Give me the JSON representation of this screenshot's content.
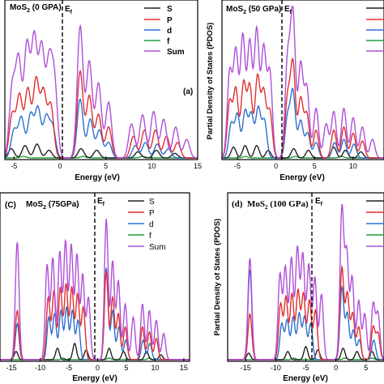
{
  "chart_data": [
    {
      "type": "line",
      "panel_label": "(a)",
      "title": "MoS2 (0 GPA)",
      "fermi_label": "Ef",
      "xlabel": "Energy (eV)",
      "ylabel": "",
      "xlim": [
        -6,
        15
      ],
      "xticks": [
        "-5",
        "0",
        "5",
        "10",
        "15"
      ],
      "legend": [
        "S",
        "P",
        "d",
        "f",
        "Sum"
      ],
      "colors": {
        "S": "#222222",
        "P": "#e03030",
        "d": "#2f6fd0",
        "f": "#1f9e3a",
        "Sum": "#b04fd8"
      },
      "peaks": {
        "Sum": [
          [
            -5.2,
            0.45
          ],
          [
            -4.5,
            0.62
          ],
          [
            -3.6,
            0.72
          ],
          [
            -2.8,
            0.76
          ],
          [
            -2.0,
            0.7
          ],
          [
            -1.2,
            0.58
          ],
          [
            -0.6,
            0.48
          ],
          [
            2.2,
            0.85
          ],
          [
            3.2,
            0.62
          ],
          [
            4.2,
            0.48
          ],
          [
            5.3,
            0.36
          ],
          [
            7.8,
            0.22
          ],
          [
            9.0,
            0.28
          ],
          [
            10.2,
            0.3
          ],
          [
            11.3,
            0.25
          ],
          [
            12.6,
            0.2
          ],
          [
            13.8,
            0.12
          ]
        ],
        "P": [
          [
            -5.2,
            0.28
          ],
          [
            -4.4,
            0.4
          ],
          [
            -3.5,
            0.44
          ],
          [
            -2.6,
            0.5
          ],
          [
            -1.8,
            0.42
          ],
          [
            -1.0,
            0.34
          ],
          [
            2.2,
            0.56
          ],
          [
            3.2,
            0.4
          ],
          [
            4.2,
            0.28
          ],
          [
            5.3,
            0.2
          ],
          [
            8.0,
            0.14
          ],
          [
            9.2,
            0.18
          ],
          [
            10.4,
            0.18
          ],
          [
            11.6,
            0.14
          ],
          [
            12.8,
            0.1
          ]
        ],
        "d": [
          [
            -5.0,
            0.18
          ],
          [
            -4.2,
            0.26
          ],
          [
            -3.2,
            0.28
          ],
          [
            -2.4,
            0.32
          ],
          [
            -1.5,
            0.26
          ],
          [
            -0.8,
            0.2
          ],
          [
            2.2,
            0.38
          ],
          [
            3.3,
            0.25
          ],
          [
            4.3,
            0.18
          ],
          [
            5.3,
            0.1
          ],
          [
            8.2,
            0.08
          ],
          [
            9.3,
            0.1
          ],
          [
            10.6,
            0.09
          ],
          [
            11.8,
            0.06
          ]
        ],
        "S": [
          [
            -5.3,
            0.06
          ],
          [
            -3.8,
            0.08
          ],
          [
            -2.5,
            0.09
          ],
          [
            -1.2,
            0.05
          ],
          [
            2.3,
            0.06
          ],
          [
            4.0,
            0.05
          ],
          [
            8.5,
            0.04
          ],
          [
            10.5,
            0.05
          ],
          [
            12.5,
            0.03
          ]
        ],
        "f": [
          [
            -4.0,
            0.01
          ],
          [
            2.5,
            0.01
          ],
          [
            9.0,
            0.01
          ]
        ]
      }
    },
    {
      "type": "line",
      "panel_label": "",
      "title": "MoS2 (50 GPa)",
      "fermi_label": "Ef",
      "xlabel": "Energy (eV)",
      "ylabel": "Partial Density of States (PDOS)",
      "xlim": [
        -7,
        14
      ],
      "xticks": [
        "-5",
        "0",
        "5",
        "10"
      ],
      "legend": [
        "",
        "",
        "",
        "",
        ""
      ],
      "colors": {
        "S": "#222222",
        "P": "#e03030",
        "d": "#2f6fd0",
        "f": "#1f9e3a",
        "Sum": "#b04fd8"
      },
      "peaks": {
        "Sum": [
          [
            -6.0,
            0.55
          ],
          [
            -5.2,
            0.68
          ],
          [
            -4.3,
            0.78
          ],
          [
            -3.4,
            0.74
          ],
          [
            -2.5,
            0.82
          ],
          [
            -1.6,
            0.7
          ],
          [
            -0.8,
            0.55
          ],
          [
            1.5,
            0.62
          ],
          [
            2.2,
            0.92
          ],
          [
            3.2,
            0.6
          ],
          [
            4.0,
            0.45
          ],
          [
            5.2,
            0.32
          ],
          [
            6.5,
            0.22
          ],
          [
            7.5,
            0.3
          ],
          [
            8.8,
            0.32
          ],
          [
            10.0,
            0.26
          ],
          [
            11.2,
            0.2
          ],
          [
            12.5,
            0.12
          ]
        ],
        "P": [
          [
            -6.0,
            0.36
          ],
          [
            -5.2,
            0.44
          ],
          [
            -4.2,
            0.48
          ],
          [
            -3.4,
            0.46
          ],
          [
            -2.4,
            0.52
          ],
          [
            -1.6,
            0.42
          ],
          [
            -0.8,
            0.3
          ],
          [
            1.5,
            0.38
          ],
          [
            2.2,
            0.6
          ],
          [
            3.2,
            0.38
          ],
          [
            4.0,
            0.28
          ],
          [
            5.2,
            0.18
          ],
          [
            7.5,
            0.18
          ],
          [
            8.8,
            0.2
          ],
          [
            10.0,
            0.16
          ],
          [
            11.2,
            0.11
          ]
        ],
        "d": [
          [
            -5.8,
            0.22
          ],
          [
            -5.0,
            0.28
          ],
          [
            -4.0,
            0.3
          ],
          [
            -3.2,
            0.28
          ],
          [
            -2.3,
            0.32
          ],
          [
            -1.5,
            0.24
          ],
          [
            1.5,
            0.26
          ],
          [
            2.2,
            0.42
          ],
          [
            3.2,
            0.24
          ],
          [
            4.1,
            0.16
          ],
          [
            5.2,
            0.1
          ],
          [
            7.6,
            0.1
          ],
          [
            8.8,
            0.12
          ],
          [
            10.1,
            0.09
          ]
        ],
        "S": [
          [
            -5.5,
            0.07
          ],
          [
            -4.0,
            0.08
          ],
          [
            -2.5,
            0.08
          ],
          [
            -1.0,
            0.05
          ],
          [
            2.3,
            0.06
          ],
          [
            4.2,
            0.05
          ],
          [
            7.5,
            0.07
          ],
          [
            9.0,
            0.05
          ],
          [
            11.0,
            0.04
          ]
        ],
        "f": [
          [
            -4.0,
            0.01
          ],
          [
            2.5,
            0.01
          ],
          [
            8.5,
            0.01
          ]
        ]
      }
    },
    {
      "type": "line",
      "panel_label": "(C)",
      "title": "MoS2 (75GPa)",
      "fermi_label": "Ef",
      "xlabel": "Energy (eV)",
      "ylabel": "",
      "xlim": [
        -17,
        16
      ],
      "xticks": [
        "-15",
        "-10",
        "-5",
        "0",
        "5",
        "10",
        "15"
      ],
      "legend": [
        "S",
        "P",
        "d",
        "f",
        "Sum"
      ],
      "colors": {
        "S": "#222222",
        "P": "#e03030",
        "d": "#2f6fd0",
        "f": "#1f9e3a",
        "Sum": "#b04fd8"
      },
      "peaks": {
        "Sum": [
          [
            -14.0,
            0.72
          ],
          [
            -8.8,
            0.58
          ],
          [
            -7.8,
            0.62
          ],
          [
            -6.6,
            0.66
          ],
          [
            -5.6,
            0.72
          ],
          [
            -4.6,
            0.7
          ],
          [
            -3.6,
            0.64
          ],
          [
            -2.6,
            0.52
          ],
          [
            -1.6,
            0.38
          ],
          [
            1.5,
            0.86
          ],
          [
            2.6,
            0.6
          ],
          [
            3.6,
            0.48
          ],
          [
            4.8,
            0.34
          ],
          [
            6.2,
            0.26
          ],
          [
            7.8,
            0.34
          ],
          [
            9.0,
            0.3
          ],
          [
            10.2,
            0.24
          ],
          [
            11.5,
            0.16
          ]
        ],
        "P": [
          [
            -14.0,
            0.3
          ],
          [
            -8.6,
            0.38
          ],
          [
            -7.6,
            0.42
          ],
          [
            -6.5,
            0.44
          ],
          [
            -5.5,
            0.46
          ],
          [
            -4.5,
            0.44
          ],
          [
            -3.5,
            0.4
          ],
          [
            -2.5,
            0.32
          ],
          [
            1.5,
            0.54
          ],
          [
            2.6,
            0.38
          ],
          [
            3.6,
            0.28
          ],
          [
            4.8,
            0.2
          ],
          [
            7.8,
            0.2
          ],
          [
            9.0,
            0.17
          ],
          [
            10.2,
            0.13
          ]
        ],
        "d": [
          [
            -14.0,
            0.22
          ],
          [
            -8.5,
            0.26
          ],
          [
            -7.5,
            0.28
          ],
          [
            -6.4,
            0.3
          ],
          [
            -5.4,
            0.32
          ],
          [
            -4.4,
            0.3
          ],
          [
            -3.4,
            0.24
          ],
          [
            1.5,
            0.56
          ],
          [
            2.6,
            0.3
          ],
          [
            3.7,
            0.2
          ],
          [
            4.9,
            0.12
          ],
          [
            7.9,
            0.12
          ],
          [
            9.1,
            0.1
          ]
        ],
        "S": [
          [
            -14.2,
            0.05
          ],
          [
            -7.0,
            0.07
          ],
          [
            -4.0,
            0.1
          ],
          [
            -2.0,
            0.06
          ],
          [
            2.0,
            0.07
          ],
          [
            4.5,
            0.05
          ],
          [
            8.5,
            0.05
          ],
          [
            11.0,
            0.03
          ]
        ],
        "f": [
          [
            -6.0,
            0.01
          ],
          [
            2.0,
            0.01
          ],
          [
            9.0,
            0.01
          ]
        ]
      }
    },
    {
      "type": "line",
      "panel_label": "(d)",
      "title": "MoS2 (100 GPa)",
      "fermi_label": "Ef",
      "xlabel": "Energy (eV)",
      "ylabel": "Partial Density of States (PDOS)",
      "xlim": [
        -18,
        8
      ],
      "xticks": [
        "-15",
        "-10",
        "-5",
        "0",
        "5"
      ],
      "legend": [
        "",
        "",
        "",
        "",
        ""
      ],
      "colors": {
        "S": "#222222",
        "P": "#e03030",
        "d": "#2f6fd0",
        "f": "#1f9e3a",
        "Sum": "#b04fd8"
      },
      "peaks": {
        "Sum": [
          [
            -14.3,
            0.62
          ],
          [
            -9.3,
            0.52
          ],
          [
            -8.4,
            0.56
          ],
          [
            -7.4,
            0.62
          ],
          [
            -6.4,
            0.68
          ],
          [
            -5.5,
            0.64
          ],
          [
            -4.5,
            0.58
          ],
          [
            -3.5,
            0.5
          ],
          [
            -2.4,
            0.4
          ],
          [
            1.0,
            0.92
          ],
          [
            1.8,
            0.64
          ],
          [
            2.7,
            0.5
          ],
          [
            3.8,
            0.36
          ],
          [
            4.8,
            0.28
          ],
          [
            6.2,
            0.34
          ],
          [
            7.0,
            0.28
          ]
        ],
        "P": [
          [
            -14.3,
            0.28
          ],
          [
            -9.2,
            0.34
          ],
          [
            -8.3,
            0.38
          ],
          [
            -7.3,
            0.4
          ],
          [
            -6.3,
            0.42
          ],
          [
            -5.4,
            0.4
          ],
          [
            -4.4,
            0.36
          ],
          [
            -3.4,
            0.3
          ],
          [
            1.0,
            0.56
          ],
          [
            1.9,
            0.4
          ],
          [
            2.8,
            0.28
          ],
          [
            3.8,
            0.2
          ],
          [
            6.2,
            0.2
          ],
          [
            7.0,
            0.16
          ]
        ],
        "d": [
          [
            -14.3,
            0.55
          ],
          [
            -9.0,
            0.22
          ],
          [
            -8.1,
            0.24
          ],
          [
            -7.1,
            0.26
          ],
          [
            -6.1,
            0.28
          ],
          [
            -5.2,
            0.26
          ],
          [
            -4.2,
            0.22
          ],
          [
            1.0,
            0.44
          ],
          [
            1.9,
            0.28
          ],
          [
            2.9,
            0.18
          ],
          [
            3.9,
            0.12
          ],
          [
            6.3,
            0.12
          ]
        ],
        "S": [
          [
            -14.5,
            0.04
          ],
          [
            -8.0,
            0.05
          ],
          [
            -5.0,
            0.08
          ],
          [
            -3.0,
            0.06
          ],
          [
            1.2,
            0.07
          ],
          [
            3.5,
            0.05
          ],
          [
            6.0,
            0.05
          ]
        ],
        "f": [
          [
            -7.0,
            0.01
          ],
          [
            1.5,
            0.01
          ],
          [
            6.0,
            0.01
          ]
        ]
      }
    }
  ]
}
